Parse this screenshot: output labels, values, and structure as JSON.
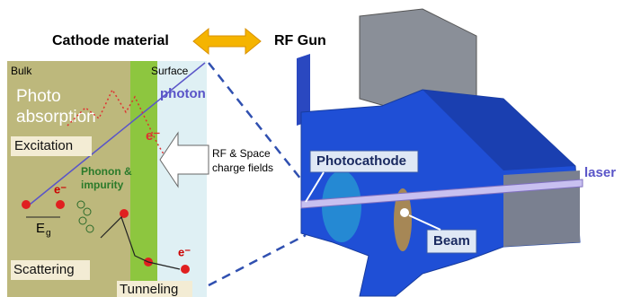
{
  "header": {
    "left": "Cathode material",
    "right": "RF Gun"
  },
  "panel": {
    "bulk": "Bulk",
    "surface": "Surface",
    "photo_absorption": [
      "Photo",
      "absorption"
    ],
    "photon": "photon",
    "electrons": [
      "e⁻",
      "e⁻",
      "e⁻"
    ],
    "excitation": "Excitation",
    "phonon_impurity": [
      "Phonon &",
      "impurity"
    ],
    "fields": [
      "RF & Space",
      "charge fields"
    ],
    "gap": {
      "symbol": "E",
      "subscript": "g"
    },
    "scattering": "Scattering",
    "tunneling": "Tunneling"
  },
  "gun": {
    "photocathode": "Photocathode",
    "laser": "laser",
    "beam": "Beam"
  }
}
